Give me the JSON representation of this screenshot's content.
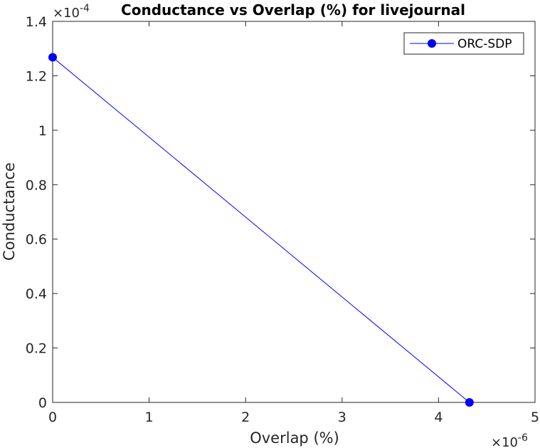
{
  "chart_data": {
    "type": "line",
    "title": "Conductance vs Overlap (%) for livejournal",
    "xlabel": "Overlap (%)",
    "ylabel": "Conductance",
    "x_multiplier": "×10",
    "x_exponent": "-6",
    "y_multiplier": "×10",
    "y_exponent": "-4",
    "xlim": [
      0,
      5e-06
    ],
    "ylim": [
      0,
      0.00014
    ],
    "x_ticks": [
      0,
      1e-06,
      2e-06,
      3e-06,
      4e-06,
      5e-06
    ],
    "x_tick_labels": [
      "0",
      "1",
      "2",
      "3",
      "4",
      "5"
    ],
    "y_ticks": [
      0,
      2e-05,
      4e-05,
      6e-05,
      8e-05,
      0.0001,
      0.00012,
      0.00014
    ],
    "y_tick_labels": [
      "0",
      "0.2",
      "0.4",
      "0.6",
      "0.8",
      "1",
      "1.2",
      "1.4"
    ],
    "legend_position": "top-right",
    "grid": false,
    "series": [
      {
        "name": "ORC-SDP",
        "color": "#0000ff",
        "marker": "circle",
        "x": [
          0,
          4.32e-06
        ],
        "y": [
          0.0001268,
          0
        ]
      }
    ]
  }
}
